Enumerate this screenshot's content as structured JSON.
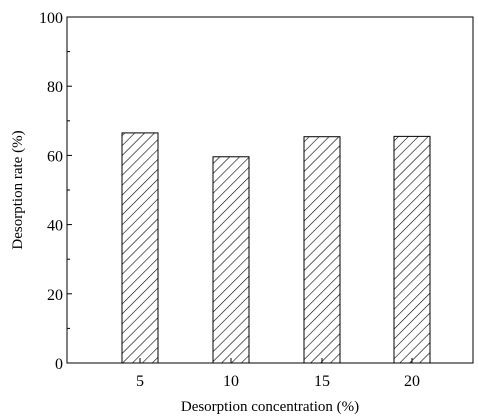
{
  "chart_data": {
    "type": "bar",
    "categories": [
      "5",
      "10",
      "15",
      "20"
    ],
    "values": [
      66.5,
      59.6,
      65.4,
      65.5
    ],
    "xlabel": "Desorption concentration (%)",
    "ylabel": "Desorption rate (%)",
    "ylim": [
      0,
      100
    ],
    "yticks": [
      "0",
      "20",
      "40",
      "60",
      "80",
      "100"
    ],
    "bar_fill": "diagonal-hatch",
    "colors": {
      "bar_stroke": "#000000",
      "hatch": "#000000",
      "axis": "#000000",
      "background": "#ffffff"
    },
    "grid": false,
    "legend": false
  }
}
